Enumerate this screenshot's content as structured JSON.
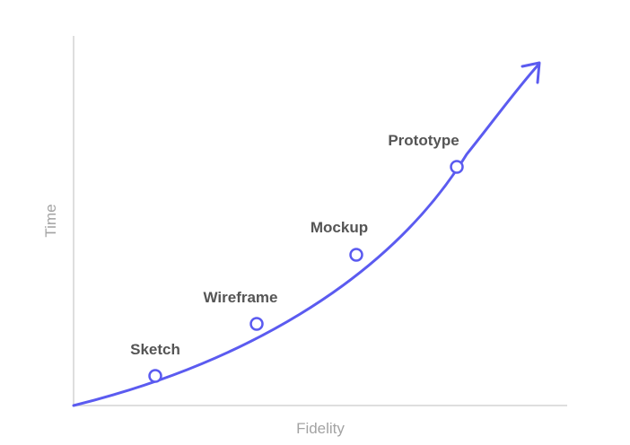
{
  "axes": {
    "x_label": "Fidelity",
    "y_label": "Time"
  },
  "stages": [
    {
      "label": "Sketch"
    },
    {
      "label": "Wireframe"
    },
    {
      "label": "Mockup"
    },
    {
      "label": "Prototype"
    }
  ],
  "colors": {
    "curve": "#5b5bf0",
    "axis": "#d4d4d4",
    "axis_text": "#a3a3a3",
    "label_text": "#555555",
    "marker_fill": "#ffffff"
  },
  "icons": {
    "curve_end": "arrow-head-icon"
  }
}
